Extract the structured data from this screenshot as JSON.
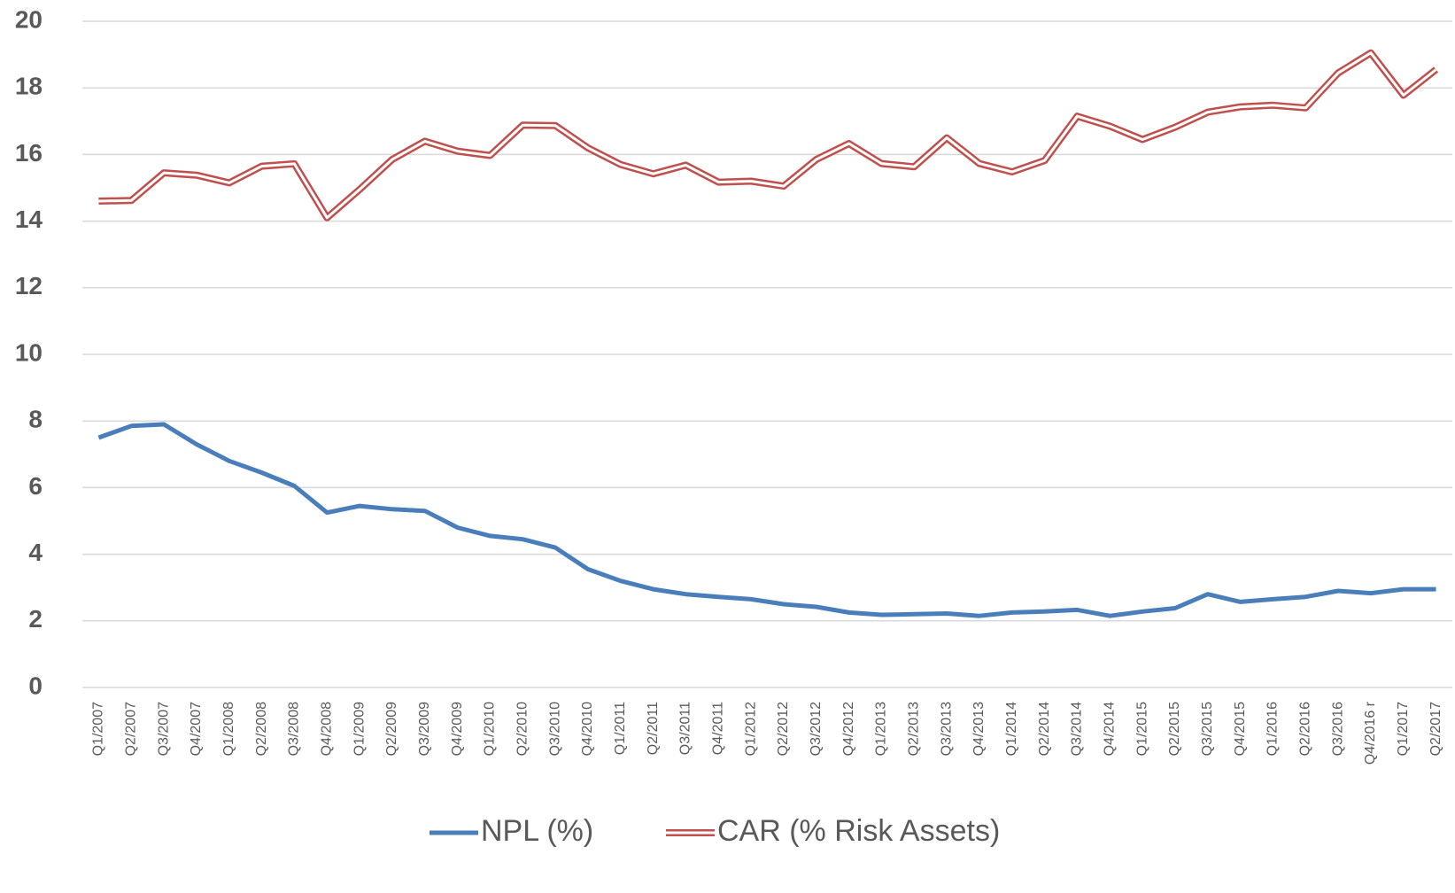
{
  "chart_data": {
    "type": "line",
    "categories": [
      "Q1/2007",
      "Q2/2007",
      "Q3/2007",
      "Q4/2007",
      "Q1/2008",
      "Q2/2008",
      "Q3/2008",
      "Q4/2008",
      "Q1/2009",
      "Q2/2009",
      "Q3/2009",
      "Q4/2009",
      "Q1/2010",
      "Q2/2010",
      "Q3/2010",
      "Q4/2010",
      "Q1/2011",
      "Q2/2011",
      "Q3/2011",
      "Q4/2011",
      "Q1/2012",
      "Q2/2012",
      "Q3/2012",
      "Q4/2012",
      "Q1/2013",
      "Q2/2013",
      "Q3/2013",
      "Q4/2013",
      "Q1/2014",
      "Q2/2014",
      "Q3/2014",
      "Q4/2014",
      "Q1/2015",
      "Q2/2015",
      "Q3/2015",
      "Q4/2015",
      "Q1/2016",
      "Q2/2016",
      "Q3/2016",
      "Q4/2016 r",
      "Q1/2017",
      "Q2/2017"
    ],
    "series": [
      {
        "name": "NPL (%)",
        "color": "#4a7ebb",
        "style": "solid",
        "values": [
          7.5,
          7.85,
          7.9,
          7.3,
          6.8,
          6.45,
          6.05,
          5.25,
          5.45,
          5.35,
          5.3,
          4.8,
          4.55,
          4.45,
          4.2,
          3.55,
          3.2,
          2.95,
          2.8,
          2.72,
          2.65,
          2.5,
          2.42,
          2.25,
          2.18,
          2.2,
          2.22,
          2.15,
          2.25,
          2.28,
          2.33,
          2.15,
          2.28,
          2.38,
          2.8,
          2.57,
          2.65,
          2.72,
          2.9,
          2.83,
          2.95,
          2.95
        ]
      },
      {
        "name": "CAR (% Risk Assets)",
        "color": "#c0504d",
        "style": "double",
        "values": [
          14.6,
          14.62,
          15.45,
          15.38,
          15.15,
          15.65,
          15.72,
          14.1,
          14.95,
          15.85,
          16.4,
          16.1,
          15.97,
          16.88,
          16.87,
          16.2,
          15.7,
          15.42,
          15.68,
          15.17,
          15.2,
          15.05,
          15.85,
          16.33,
          15.73,
          15.63,
          16.5,
          15.73,
          15.48,
          15.82,
          17.15,
          16.85,
          16.45,
          16.82,
          17.27,
          17.43,
          17.48,
          17.4,
          18.45,
          19.05,
          17.78,
          18.55
        ]
      }
    ],
    "ylim": [
      0,
      20
    ],
    "yticks": [
      0,
      2,
      4,
      6,
      8,
      10,
      12,
      14,
      16,
      18,
      20
    ],
    "grid": true,
    "legend": "bottom"
  }
}
